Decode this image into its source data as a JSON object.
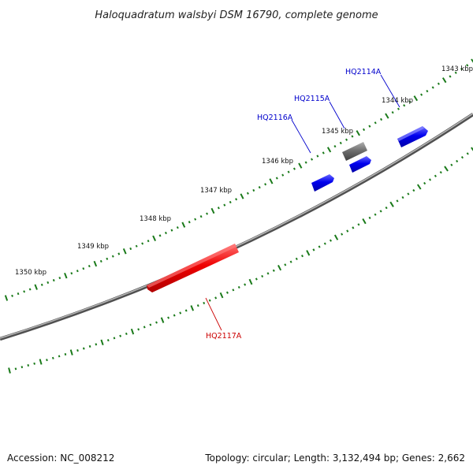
{
  "title": "Haloquadratum walsbyi DSM 16790, complete genome",
  "footer": {
    "accession": "Accession: NC_008212",
    "summary": "Topology: circular; Length: 3,132,494 bp; Genes: 2,662"
  },
  "kbp_labels": [
    "1343 kbp",
    "1344 kbp",
    "1345 kbp",
    "1346 kbp",
    "1347 kbp",
    "1348 kbp",
    "1349 kbp",
    "1350 kbp"
  ],
  "genes": [
    {
      "name": "HQ2114A",
      "color": "#0000cc",
      "strand": "+"
    },
    {
      "name": "HQ2115A",
      "color": "#0000cc",
      "strand": "+"
    },
    {
      "name": "HQ2116A",
      "color": "#0000cc",
      "strand": "+"
    },
    {
      "name": "HQ2117A",
      "color": "#cc0000",
      "strand": "-"
    }
  ],
  "colors": {
    "backbone": "#808080",
    "tick": "#1a7a1a",
    "forward_gene": "#0000ee",
    "reverse_gene": "#ee0000",
    "other_feature": "#666666"
  }
}
